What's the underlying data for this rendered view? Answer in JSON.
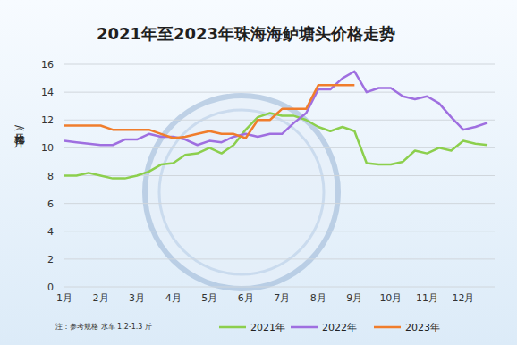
{
  "chart_data": {
    "type": "line",
    "title": "2021年至2023年珠海海鲈塘头价格走势",
    "y_label": "价格（元/斤）",
    "annotations": [
      "注：参考规格  水车 1.2-1.3 斤"
    ],
    "categories": [
      "1月",
      null,
      null,
      "2月",
      null,
      null,
      "3月",
      null,
      null,
      "4月",
      null,
      null,
      "5月",
      null,
      null,
      "6月",
      null,
      null,
      "7月",
      null,
      null,
      "8月",
      null,
      null,
      "9月",
      null,
      null,
      "10月",
      null,
      null,
      "11月",
      null,
      null,
      "12月",
      null,
      null
    ],
    "series": [
      {
        "name": "2021年",
        "color": "#8ccf4d",
        "values": [
          8.0,
          8.0,
          8.2,
          8.0,
          7.8,
          7.8,
          8.0,
          8.3,
          8.8,
          8.9,
          9.5,
          9.6,
          10.0,
          9.6,
          10.2,
          11.3,
          12.2,
          12.5,
          12.3,
          12.3,
          12.0,
          11.5,
          11.2,
          11.5,
          11.2,
          8.9,
          8.8,
          8.8,
          9.0,
          9.8,
          9.6,
          10.0,
          9.8,
          10.5,
          10.3,
          10.2
        ]
      },
      {
        "name": "2022年",
        "color": "#9f6fe0",
        "values": [
          10.5,
          10.4,
          10.3,
          10.2,
          10.2,
          10.6,
          10.6,
          11.0,
          10.8,
          10.8,
          10.6,
          10.2,
          10.5,
          10.4,
          10.8,
          11.0,
          10.8,
          11.0,
          11.0,
          11.8,
          12.5,
          14.2,
          14.2,
          15.0,
          15.5,
          14.0,
          14.3,
          14.3,
          13.7,
          13.5,
          13.7,
          13.2,
          12.2,
          11.3,
          11.5,
          11.8
        ]
      },
      {
        "name": "2023年",
        "color": "#f07d2c",
        "values": [
          11.6,
          11.6,
          11.6,
          11.6,
          11.3,
          11.3,
          11.3,
          11.3,
          11.0,
          10.7,
          10.8,
          11.0,
          11.2,
          11.0,
          11.0,
          10.7,
          12.0,
          12.0,
          12.8,
          12.8,
          12.8,
          14.5,
          14.5,
          14.5,
          14.5,
          null,
          null,
          null,
          null,
          null,
          null,
          null,
          null,
          null,
          null,
          null
        ]
      }
    ],
    "ylim": [
      0,
      16
    ],
    "yticks": [
      0,
      2,
      4,
      6,
      8,
      10,
      12,
      14,
      16
    ],
    "grid": true,
    "legend": "bottom"
  }
}
